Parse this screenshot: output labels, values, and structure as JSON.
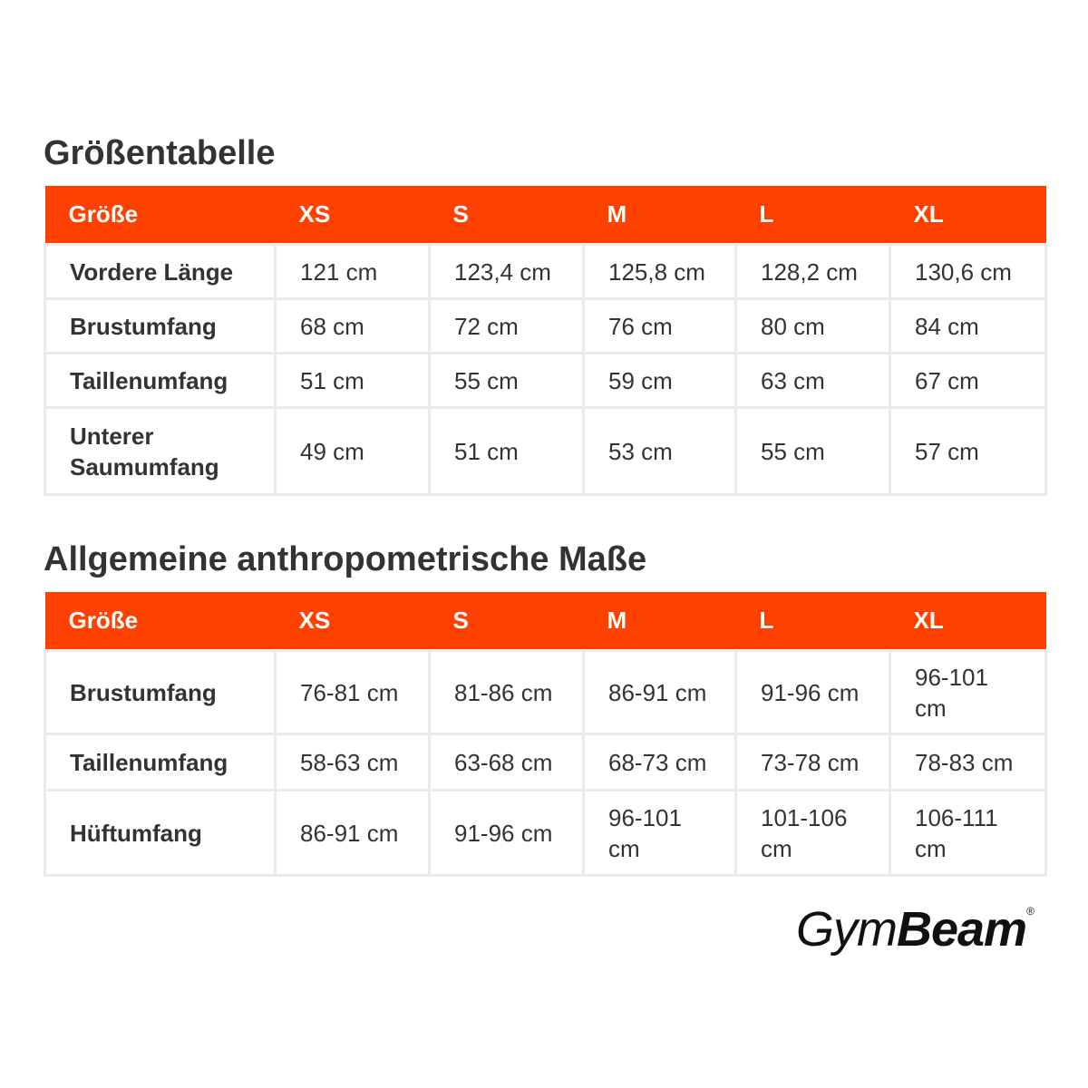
{
  "tables": [
    {
      "title": "Größentabelle",
      "header": [
        "Größe",
        "XS",
        "S",
        "M",
        "L",
        "XL"
      ],
      "rows": [
        [
          "Vordere Länge",
          "121 cm",
          "123,4 cm",
          "125,8 cm",
          "128,2 cm",
          "130,6 cm"
        ],
        [
          "Brustumfang",
          "68 cm",
          "72 cm",
          "76 cm",
          "80 cm",
          "84 cm"
        ],
        [
          "Taillenumfang",
          "51 cm",
          "55 cm",
          "59 cm",
          "63 cm",
          "67 cm"
        ],
        [
          "Unterer Saumumfang",
          "49 cm",
          "51 cm",
          "53 cm",
          "55 cm",
          "57 cm"
        ]
      ]
    },
    {
      "title": "Allgemeine anthropometrische Maße",
      "header": [
        "Größe",
        "XS",
        "S",
        "M",
        "L",
        "XL"
      ],
      "rows": [
        [
          "Brustumfang",
          "76-81 cm",
          "81-86 cm",
          "86-91 cm",
          "91-96 cm",
          "96-101 cm"
        ],
        [
          "Taillenumfang",
          "58-63 cm",
          "63-68 cm",
          "68-73 cm",
          "73-78 cm",
          "78-83 cm"
        ],
        [
          "Hüftumfang",
          "86-91 cm",
          "91-96 cm",
          "96-101 cm",
          "101-106 cm",
          "106-111 cm"
        ]
      ]
    }
  ],
  "logo": {
    "light": "Gym",
    "bold": "Beam",
    "mark": "®"
  }
}
